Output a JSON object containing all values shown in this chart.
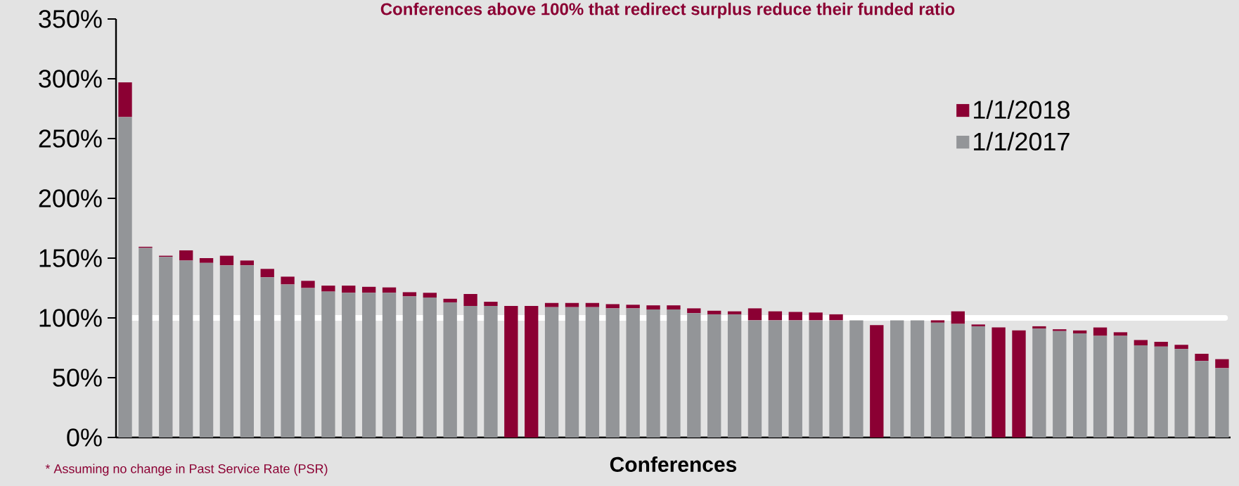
{
  "chart_data": {
    "type": "bar",
    "stacked": true,
    "title": "Conferences above 100%  that redirect surplus reduce their funded ratio",
    "xlabel": "Conferences",
    "categories": [
      null,
      null,
      null,
      null,
      null,
      null,
      null,
      null,
      null,
      null,
      null,
      null,
      null,
      null,
      null,
      null,
      null,
      null,
      null,
      null,
      null,
      null,
      null,
      null,
      null,
      null,
      null,
      null,
      null,
      null,
      null,
      null,
      null,
      null,
      null,
      null,
      null,
      null,
      null,
      null,
      null,
      null,
      null,
      null,
      null,
      null,
      null,
      null,
      null,
      null,
      null,
      null,
      null,
      null,
      null
    ],
    "series": [
      {
        "name": "1/1/2017",
        "color": "#939598",
        "values": [
          268,
          158.5,
          151,
          148,
          146,
          144,
          144,
          134,
          128,
          125,
          122,
          121,
          121,
          121,
          118,
          117,
          113,
          110,
          110,
          null,
          null,
          109,
          109,
          109,
          108,
          108,
          107,
          107,
          104,
          103,
          103,
          98,
          98,
          98,
          98,
          98,
          98,
          null,
          98,
          98,
          96,
          95,
          93,
          null,
          null,
          91,
          89,
          87,
          85,
          85,
          77,
          76,
          74,
          64,
          58
        ]
      },
      {
        "name": "1/1/2018",
        "color": "#8b0033",
        "values": [
          29,
          1,
          1,
          8.5,
          4,
          8,
          4,
          7,
          6.5,
          6,
          5,
          6,
          5,
          4.5,
          3.5,
          4,
          3,
          10,
          3.5,
          110,
          110,
          3.5,
          3.5,
          3.5,
          3.5,
          3,
          3.5,
          3.5,
          4,
          3,
          2.5,
          10,
          7.5,
          7,
          6.5,
          5,
          null,
          94,
          null,
          null,
          2,
          10.5,
          1.5,
          92,
          89.5,
          2,
          1.5,
          2.5,
          7,
          3,
          4.5,
          4,
          3.5,
          6,
          7.5
        ]
      }
    ],
    "ylim": [
      0,
      350
    ],
    "yticks": [
      {
        "value": 0,
        "label": "0%"
      },
      {
        "value": 50,
        "label": "50%"
      },
      {
        "value": 100,
        "label": "100%"
      },
      {
        "value": 150,
        "label": "150%"
      },
      {
        "value": 200,
        "label": "200%"
      },
      {
        "value": 250,
        "label": "250%"
      },
      {
        "value": 300,
        "label": "300%"
      },
      {
        "value": 350,
        "label": "350%"
      }
    ],
    "ref_lines": [
      {
        "axis": "y",
        "value": 100,
        "color": "#ffffff"
      }
    ],
    "legend": "top right",
    "grid": false,
    "annotations": [
      "* Assuming no change in Past Service Rate (PSR)"
    ]
  }
}
